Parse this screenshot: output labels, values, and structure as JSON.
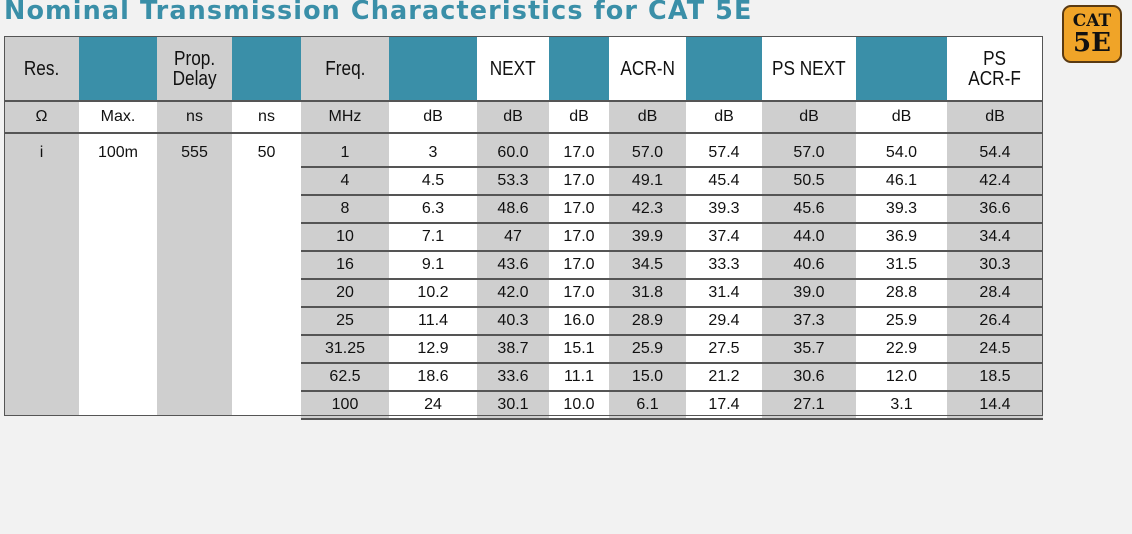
{
  "title": "Nominal Transmission Characteristics for CAT 5E",
  "badge": {
    "line1": "CAT",
    "line2": "5E"
  },
  "colors": {
    "teal": "#3a8fa8",
    "gray": "#cfcfcf",
    "white": "#ffffff",
    "badge": "#f0a428"
  },
  "headers": [
    "Res.",
    "",
    "Prop.\nDelay",
    "",
    "Freq.",
    "",
    "NEXT",
    "",
    "ACR-N",
    "",
    "PS NEXT",
    "",
    "PS\nACR-F"
  ],
  "units": [
    "Ω",
    "Max.",
    "ns",
    "ns",
    "MHz",
    "dB",
    "dB",
    "dB",
    "dB",
    "dB",
    "dB",
    "dB",
    "dB"
  ],
  "left_values": [
    "i",
    "100m",
    "555",
    "50"
  ],
  "rows": [
    [
      "1",
      "3",
      "60.0",
      "17.0",
      "57.0",
      "57.4",
      "57.0",
      "54.0",
      "54.4"
    ],
    [
      "4",
      "4.5",
      "53.3",
      "17.0",
      "49.1",
      "45.4",
      "50.5",
      "46.1",
      "42.4"
    ],
    [
      "8",
      "6.3",
      "48.6",
      "17.0",
      "42.3",
      "39.3",
      "45.6",
      "39.3",
      "36.6"
    ],
    [
      "10",
      "7.1",
      "47",
      "17.0",
      "39.9",
      "37.4",
      "44.0",
      "36.9",
      "34.4"
    ],
    [
      "16",
      "9.1",
      "43.6",
      "17.0",
      "34.5",
      "33.3",
      "40.6",
      "31.5",
      "30.3"
    ],
    [
      "20",
      "10.2",
      "42.0",
      "17.0",
      "31.8",
      "31.4",
      "39.0",
      "28.8",
      "28.4"
    ],
    [
      "25",
      "11.4",
      "40.3",
      "16.0",
      "28.9",
      "29.4",
      "37.3",
      "25.9",
      "26.4"
    ],
    [
      "31.25",
      "12.9",
      "38.7",
      "15.1",
      "25.9",
      "27.5",
      "35.7",
      "22.9",
      "24.5"
    ],
    [
      "62.5",
      "18.6",
      "33.6",
      "11.1",
      "15.0",
      "21.2",
      "30.6",
      "12.0",
      "18.5"
    ],
    [
      "100",
      "24",
      "30.1",
      "10.0",
      "6.1",
      "17.4",
      "27.1",
      "3.1",
      "14.4"
    ]
  ]
}
